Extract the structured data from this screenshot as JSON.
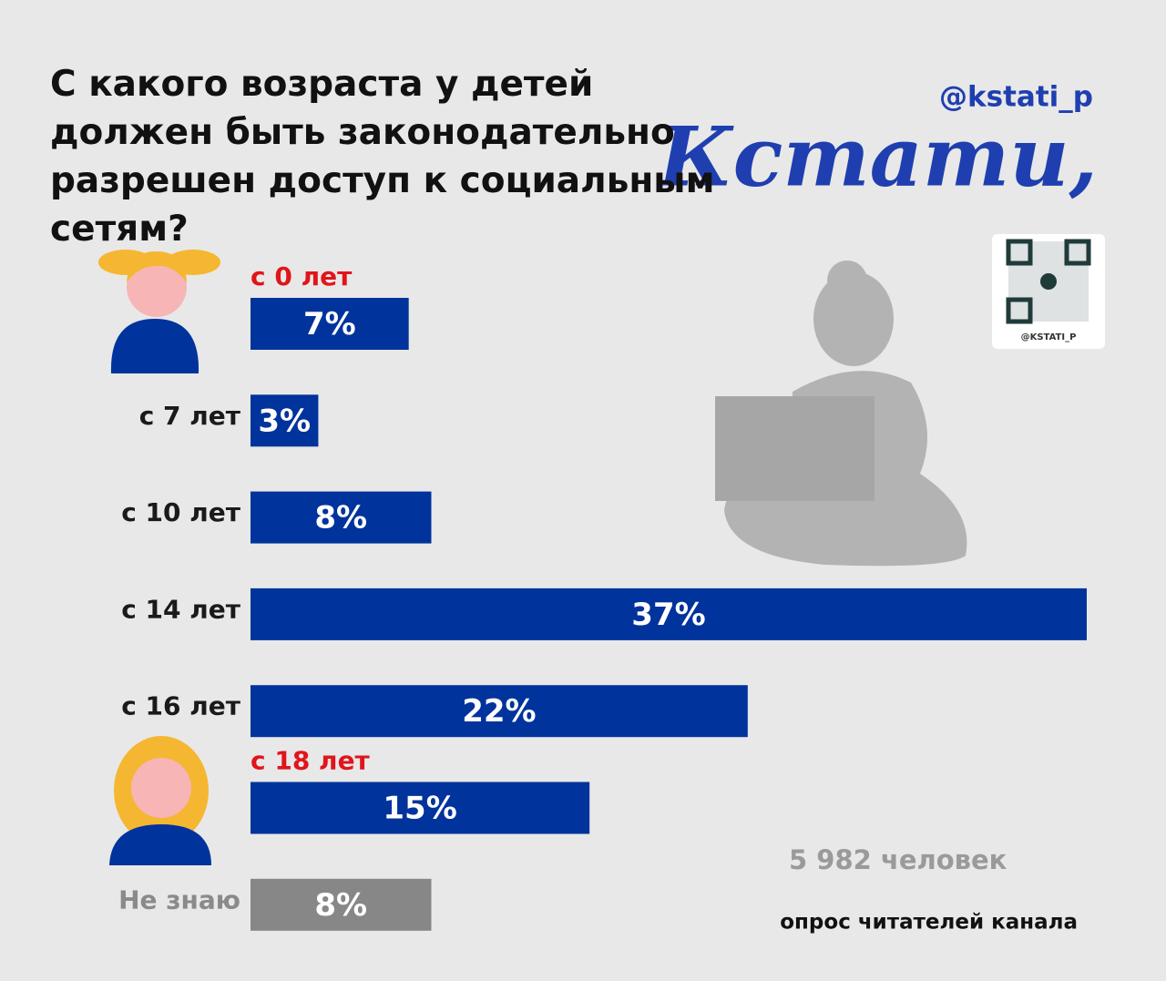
{
  "chart_data": {
    "type": "bar",
    "title": "С какого возраста у детей должен быть законодательно разрешен доступ к социальным сетям?",
    "categories": [
      "с 0 лет",
      "с 7 лет",
      "с 10 лет",
      "с 14 лет",
      "с 16 лет",
      "с 18 лет",
      "Не знаю"
    ],
    "values": [
      7,
      3,
      8,
      37,
      22,
      15,
      8
    ],
    "value_labels": [
      "7%",
      "3%",
      "8%",
      "37%",
      "22%",
      "15%",
      "8%"
    ],
    "bar_colors": [
      "#00339c",
      "#00339c",
      "#00339c",
      "#00339c",
      "#00339c",
      "#00339c",
      "#878787"
    ],
    "label_colors": [
      "#e0151b",
      "#1a1a1a",
      "#1a1a1a",
      "#1a1a1a",
      "#1a1a1a",
      "#e0151b",
      "#8a8a8a"
    ]
  },
  "handle": "@kstati_p",
  "logo": "Кстати,",
  "qr_caption": "@KSTATI_P",
  "respondents": "5 982 человек",
  "source": "опрос читателей канала"
}
